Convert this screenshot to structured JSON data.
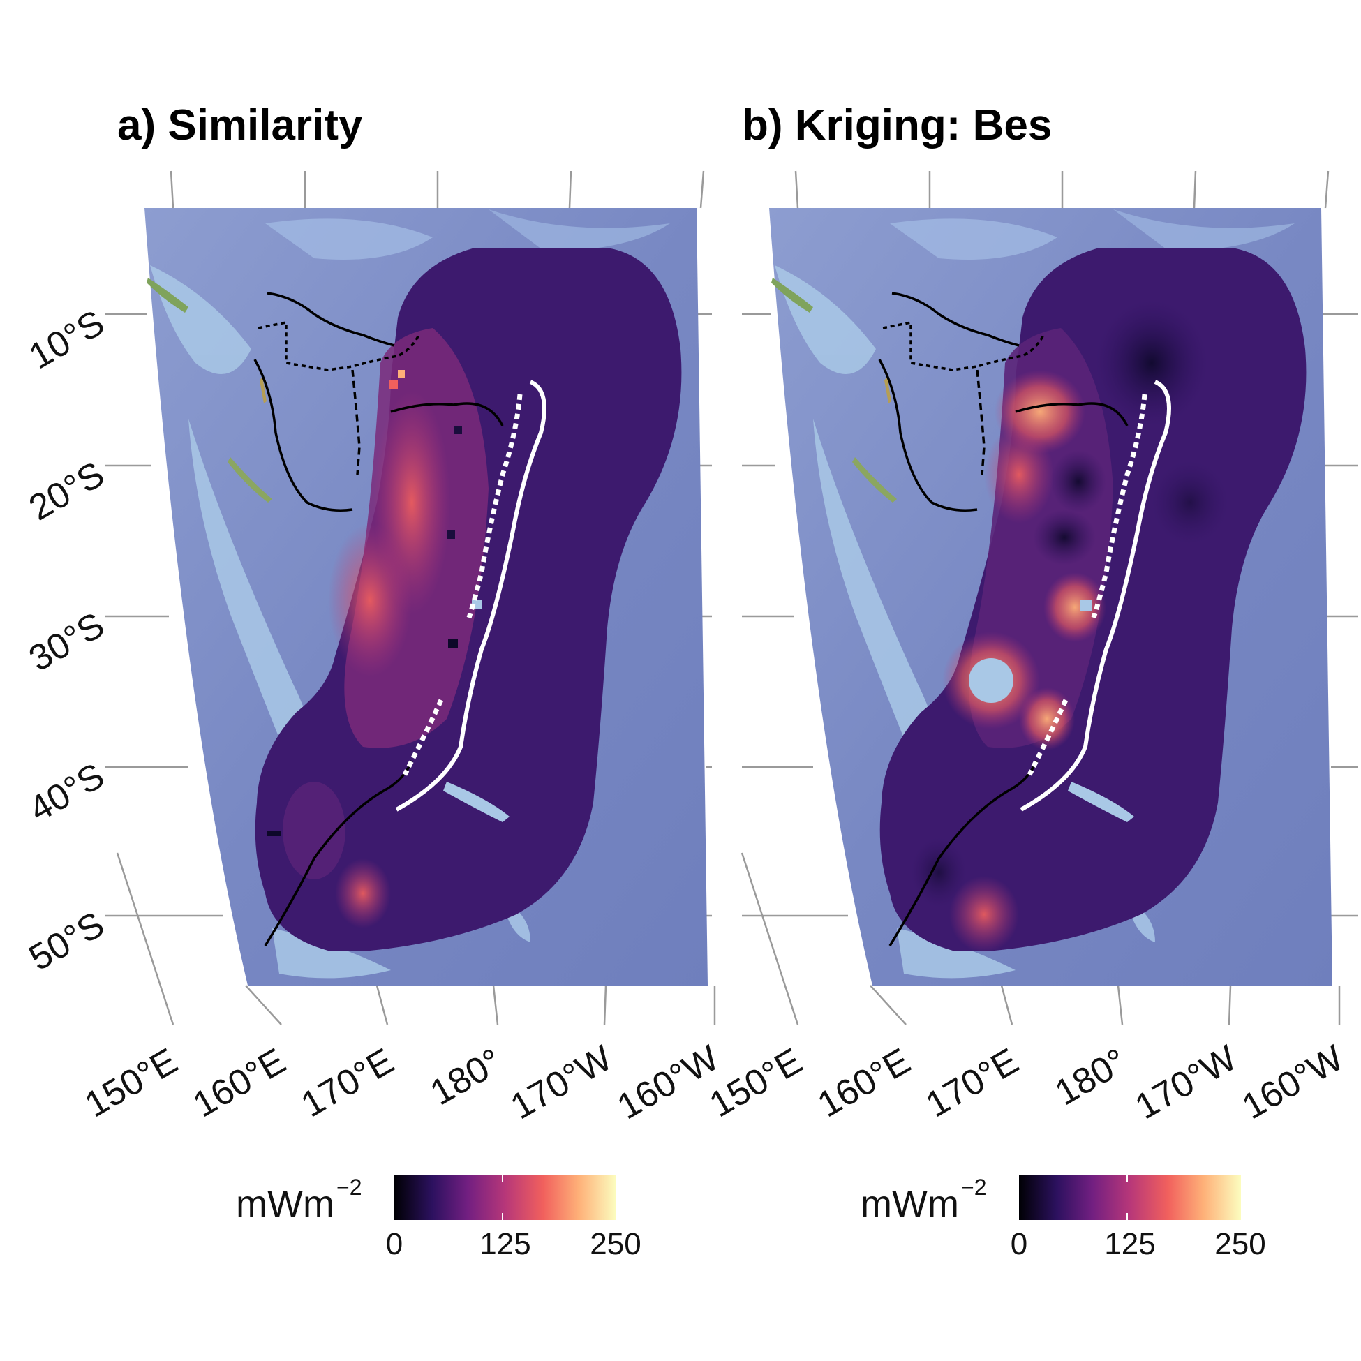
{
  "panels": [
    {
      "title": "a) Similarity",
      "lat_labels": [
        "10°S",
        "20°S",
        "30°S",
        "40°S",
        "50°S"
      ],
      "lon_labels": [
        "150°E",
        "160°E",
        "170°E",
        "180°",
        "170°W",
        "160°W"
      ],
      "legend": {
        "title": "mWm",
        "title_superscript": "−2",
        "ticks": [
          "0",
          "125",
          "250"
        ],
        "range": [
          0,
          250
        ],
        "palette": [
          "#000004",
          "#2c115f",
          "#721f81",
          "#b73779",
          "#f1605d",
          "#feb078",
          "#fcfdbf"
        ]
      }
    },
    {
      "title": "b) Kriging: Bes",
      "lat_labels": [
        "10°S",
        "20°S",
        "30°S",
        "40°S",
        "50°S"
      ],
      "lon_labels": [
        "150°E",
        "160°E",
        "170°E",
        "180°",
        "170°W",
        "160°W"
      ],
      "legend": {
        "title": "mWm",
        "title_superscript": "−2",
        "ticks": [
          "0",
          "125",
          "250"
        ],
        "range": [
          0,
          250
        ],
        "palette": [
          "#000004",
          "#2c115f",
          "#721f81",
          "#b73779",
          "#f1605d",
          "#feb078",
          "#fcfdbf"
        ]
      }
    }
  ],
  "colors": {
    "ocean": "#7e8fc8",
    "shallow": "#a9c8e6",
    "heatflow_base": "#3d1a6e",
    "trench_line": "#ffffff",
    "boundary_line": "#000000"
  }
}
